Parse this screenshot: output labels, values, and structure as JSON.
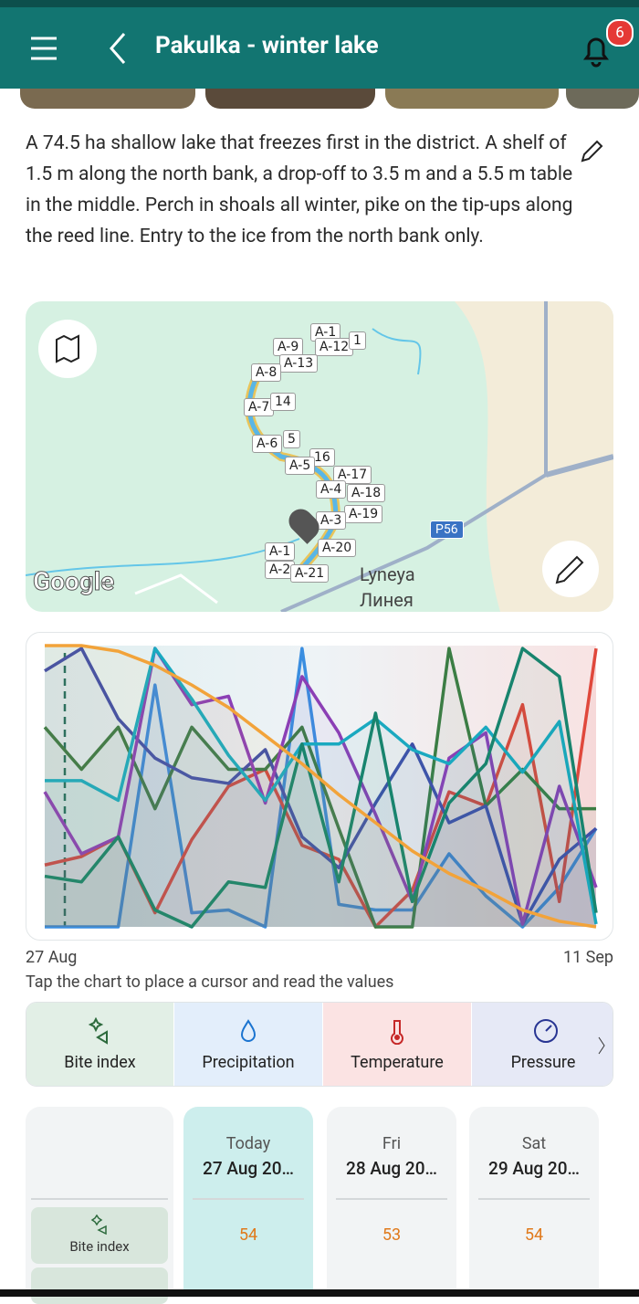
{
  "header": {
    "title": "Pakulka - winter lake",
    "badge": "6"
  },
  "description": "A 74.5 ha shallow lake that freezes first in the district. A shelf of 1.5 m along the north bank, a drop-off to 3.5 m and a 5.5 m table in the middle. Perch in shoals all winter, pike on the tip-ups along the reed line. Entry to the ice from the north bank only.",
  "map": {
    "labels": [
      "A-1",
      "A-9",
      "A-12",
      "1",
      "A-13",
      "A-8",
      "A-7",
      "14",
      "5",
      "A-6",
      "16",
      "A-5",
      "A-17",
      "A-4",
      "A-18",
      "A-19",
      "A-3",
      "A-20",
      "A-1",
      "A-2",
      "A-21"
    ],
    "road": "P56",
    "place": "Lyneya",
    "place_local": "Линея",
    "logo": "Google"
  },
  "chart_data": {
    "type": "line",
    "categories": [
      "27 Aug",
      null,
      null,
      null,
      null,
      null,
      null,
      null,
      null,
      null,
      null,
      null,
      null,
      null,
      null,
      "11 Sep"
    ],
    "ylim": [
      0,
      100
    ],
    "series": [
      {
        "color": "#3a8ee0",
        "values": [
          0,
          0,
          0,
          86,
          5,
          6,
          0,
          99,
          8,
          6,
          6,
          26,
          11,
          0,
          14,
          35
        ]
      },
      {
        "color": "#e0483c",
        "values": [
          22,
          25,
          32,
          5,
          31,
          50,
          56,
          29,
          24,
          0,
          13,
          48,
          43,
          79,
          9,
          99
        ]
      },
      {
        "color": "#3b7d44",
        "values": [
          71,
          56,
          71,
          42,
          71,
          56,
          56,
          71,
          35,
          0,
          0,
          99,
          43,
          56,
          42,
          42
        ]
      },
      {
        "color": "#3f4fa8",
        "values": [
          91,
          99,
          74,
          60,
          53,
          51,
          63,
          32,
          21,
          44,
          65,
          37,
          43,
          1,
          24,
          35
        ]
      },
      {
        "color": "#8b3fb5",
        "values": [
          48,
          26,
          32,
          99,
          79,
          82,
          44,
          89,
          69,
          40,
          9,
          60,
          69,
          1,
          50,
          14
        ]
      },
      {
        "color": "#1aa9c0",
        "values": [
          52,
          52,
          45,
          99,
          81,
          61,
          45,
          65,
          65,
          74,
          63,
          58,
          71,
          55,
          73,
          1
        ]
      },
      {
        "color": "#18846e",
        "values": [
          18,
          16,
          32,
          6,
          0,
          16,
          14,
          65,
          16,
          76,
          9,
          44,
          58,
          99,
          89,
          5
        ]
      },
      {
        "color": "#f2a33a",
        "values": [
          100,
          100,
          98,
          93,
          86,
          78,
          68,
          58,
          47,
          37,
          27,
          19,
          13,
          6,
          2,
          0
        ]
      }
    ]
  },
  "hint": "Tap the chart to place a cursor and read the values",
  "tabs": [
    "Bite index",
    "Precipitation",
    "Temperature",
    "Pressure"
  ],
  "table": {
    "columns": [
      {
        "day": "Today",
        "date": "27 Aug 20…"
      },
      {
        "day": "Fri",
        "date": "28 Aug 20…"
      },
      {
        "day": "Sat",
        "date": "29 Aug 20…"
      }
    ],
    "row_label": "Bite index",
    "values": [
      54,
      53,
      54
    ]
  }
}
